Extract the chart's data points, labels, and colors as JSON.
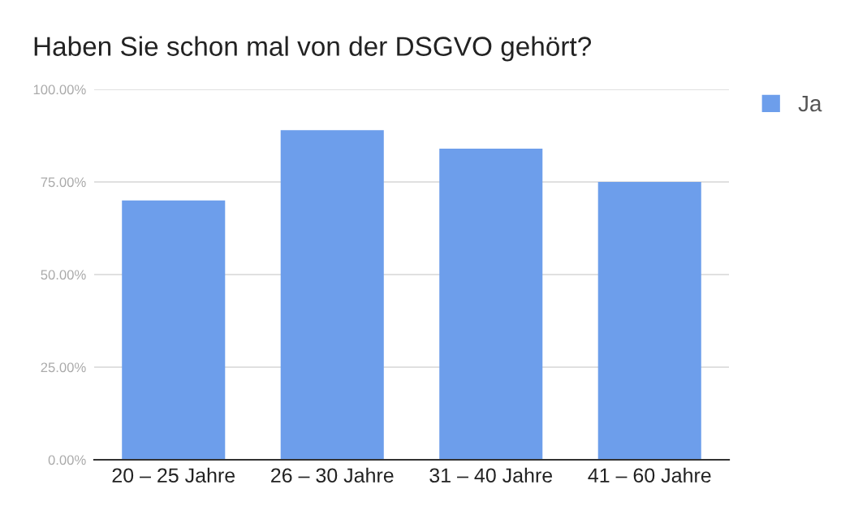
{
  "chart_data": {
    "type": "bar",
    "title": "Haben Sie schon mal von der DSGVO gehört?",
    "categories": [
      "20 – 25 Jahre",
      "26 – 30 Jahre",
      "31 – 40 Jahre",
      "41 – 60 Jahre"
    ],
    "series": [
      {
        "name": "Ja",
        "color": "#6d9eeb",
        "values": [
          70,
          89,
          84,
          75
        ]
      }
    ],
    "ylim": [
      0,
      100
    ],
    "yticks": [
      {
        "value": 0,
        "label": "0.00%"
      },
      {
        "value": 25,
        "label": "25.00%"
      },
      {
        "value": 50,
        "label": "50.00%"
      },
      {
        "value": 75,
        "label": "75.00%"
      },
      {
        "value": 100,
        "label": "100.00%"
      }
    ],
    "grid": "y",
    "legend": "top right"
  }
}
